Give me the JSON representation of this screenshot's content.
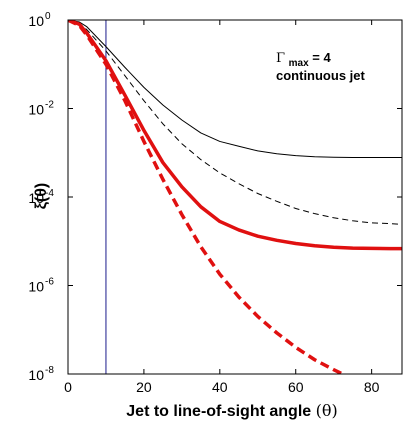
{
  "chart_data": {
    "type": "line",
    "title": "",
    "xlabel": "Jet to line-of-sight angle",
    "xlabel_symbol": "(θ)",
    "ylabel": "ξ(θ)",
    "xlim": [
      0,
      88
    ],
    "ylim": [
      1e-08,
      1
    ],
    "y_scale": "log",
    "grid": false,
    "x_ticks": [
      0,
      20,
      40,
      60,
      80
    ],
    "y_ticks": [
      {
        "value": 1,
        "base": "10",
        "exp": "0"
      },
      {
        "value": 0.01,
        "base": "10",
        "exp": "-2"
      },
      {
        "value": 0.0001,
        "base": "10",
        "exp": "-4"
      },
      {
        "value": 1e-06,
        "base": "10",
        "exp": "-6"
      },
      {
        "value": 1e-08,
        "base": "10",
        "exp": "-8"
      }
    ],
    "annotation": {
      "gamma_symbol": "Γ",
      "gamma_sub": "max",
      "gamma_value": " = 4",
      "line2": "continuous jet"
    },
    "vertical_line": {
      "x": 10,
      "color": "#1a1a8c"
    },
    "series": [
      {
        "color": "#000000",
        "width": 1,
        "dash": "none",
        "x": [
          0,
          3,
          5,
          10,
          15,
          20,
          25,
          30,
          35,
          40,
          45,
          50,
          55,
          60,
          65,
          70,
          75,
          80,
          85,
          88
        ],
        "y": [
          1,
          0.9,
          0.7,
          0.25,
          0.085,
          0.03,
          0.012,
          0.0055,
          0.0028,
          0.0018,
          0.0014,
          0.0011,
          0.00095,
          0.00086,
          0.00081,
          0.00079,
          0.00078,
          0.00078,
          0.00078,
          0.00078
        ]
      },
      {
        "color": "#000000",
        "width": 1,
        "dash": "6,4",
        "x": [
          0,
          3,
          5,
          10,
          15,
          20,
          25,
          30,
          35,
          40,
          45,
          50,
          55,
          60,
          65,
          70,
          75,
          80,
          85,
          88
        ],
        "y": [
          1,
          0.85,
          0.6,
          0.2,
          0.055,
          0.015,
          0.0045,
          0.0016,
          0.0007,
          0.00035,
          0.0002,
          0.00012,
          8e-05,
          5.5e-05,
          4.2e-05,
          3.4e-05,
          2.9e-05,
          2.6e-05,
          2.5e-05,
          2.4e-05
        ]
      },
      {
        "color": "#e01010",
        "width": 3.5,
        "dash": "none",
        "x": [
          0,
          3,
          5,
          10,
          15,
          20,
          25,
          30,
          35,
          40,
          45,
          50,
          55,
          60,
          65,
          70,
          75,
          80,
          85,
          88
        ],
        "y": [
          1,
          0.8,
          0.5,
          0.12,
          0.02,
          0.0032,
          0.0006,
          0.00017,
          6e-05,
          2.8e-05,
          1.8e-05,
          1.3e-05,
          1.05e-05,
          8.9e-06,
          7.9e-06,
          7.3e-06,
          7e-06,
          6.9e-06,
          6.8e-06,
          6.8e-06
        ]
      },
      {
        "color": "#e01010",
        "width": 3.5,
        "dash": "9,5",
        "x": [
          0,
          3,
          5,
          10,
          15,
          20,
          25,
          30,
          35,
          40,
          45,
          50,
          55,
          60,
          65,
          70,
          75,
          80,
          85,
          88
        ],
        "y": [
          1,
          0.75,
          0.45,
          0.1,
          0.015,
          0.0018,
          0.00025,
          4e-05,
          7.5e-06,
          1.8e-06,
          5.5e-07,
          2e-07,
          8.5e-08,
          4e-08,
          2.1e-08,
          1.25e-08,
          7.8e-09,
          5.5e-09,
          4.3e-09,
          4e-09
        ]
      }
    ]
  }
}
